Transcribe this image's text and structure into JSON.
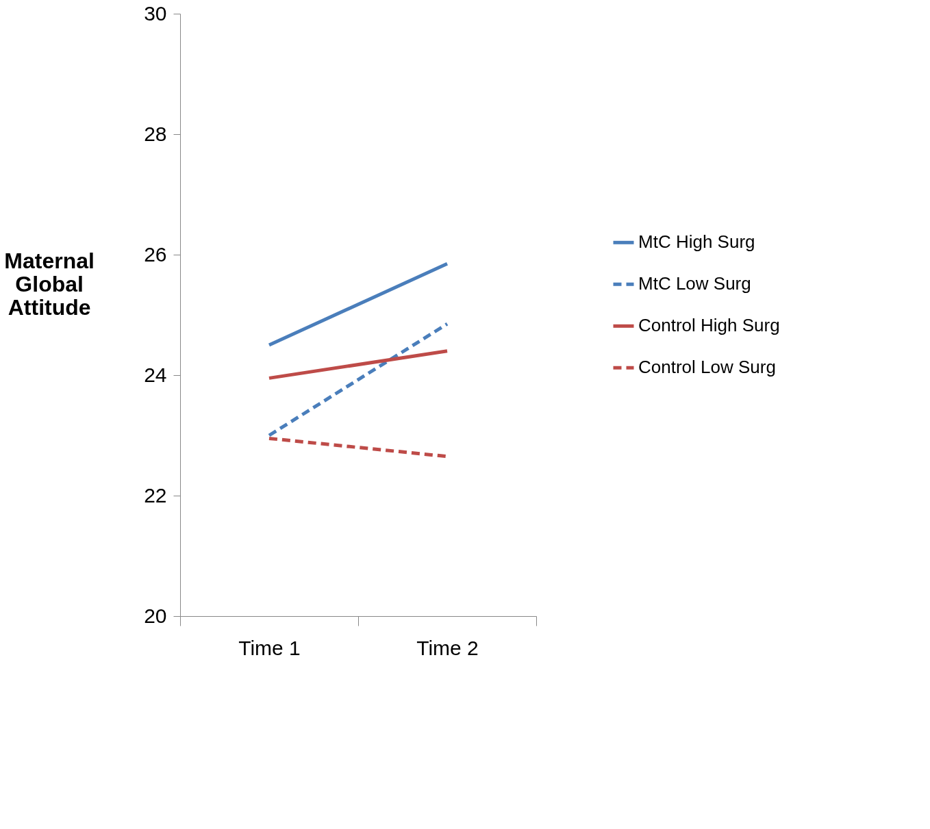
{
  "chart_data": {
    "type": "line",
    "ylabel": "Maternal Global Attitude",
    "categories": [
      "Time 1",
      "Time 2"
    ],
    "series": [
      {
        "name": "MtC High Surg",
        "color": "#4a7ebb",
        "line_style": "solid",
        "values": [
          24.5,
          25.85
        ]
      },
      {
        "name": "MtC Low Surg",
        "color": "#4a7ebb",
        "line_style": "dashed",
        "values": [
          23.0,
          24.85
        ]
      },
      {
        "name": "Control High Surg",
        "color": "#be4b48",
        "line_style": "solid",
        "values": [
          23.95,
          24.4
        ]
      },
      {
        "name": "Control Low Surg",
        "color": "#be4b48",
        "line_style": "dashed",
        "values": [
          22.95,
          22.65
        ]
      }
    ],
    "ylim": [
      20,
      30
    ],
    "yticks": [
      20,
      22,
      24,
      26,
      28,
      30
    ],
    "grid": false,
    "legend": "right",
    "marker": "none"
  }
}
